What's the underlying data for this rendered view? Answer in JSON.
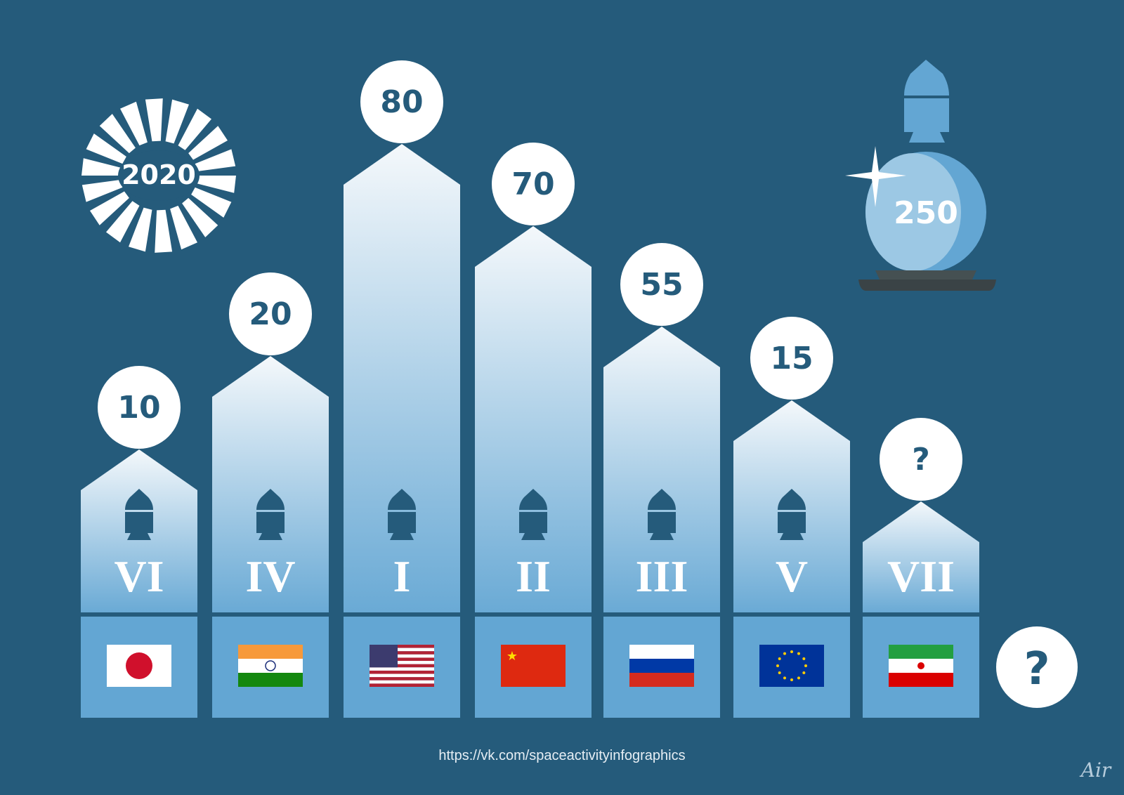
{
  "chart_data": {
    "type": "bar",
    "badge_year": "2020",
    "categories": [
      "Japan",
      "India",
      "USA",
      "China",
      "Russia",
      "European Union",
      "Iran"
    ],
    "ranks": [
      "VI",
      "IV",
      "I",
      "II",
      "III",
      "V",
      "VII"
    ],
    "values": [
      10,
      20,
      80,
      70,
      55,
      15,
      null
    ],
    "value_labels": [
      "10",
      "20",
      "80",
      "70",
      "55",
      "15",
      "?"
    ],
    "extra_label": "?",
    "forecast_total": "250",
    "legend": "none"
  },
  "footer": {
    "url": "https://vk.com/spaceactivityinfographics",
    "signature": "Air"
  },
  "colors": {
    "background": "#255b7b",
    "bar_top": "#f4f8fb",
    "bar_bottom": "#6aaad5",
    "flag_box": "#63a6d3",
    "label_circle": "#ffffff",
    "label_text": "#255b7b",
    "ball_stand": "#3a4346"
  }
}
